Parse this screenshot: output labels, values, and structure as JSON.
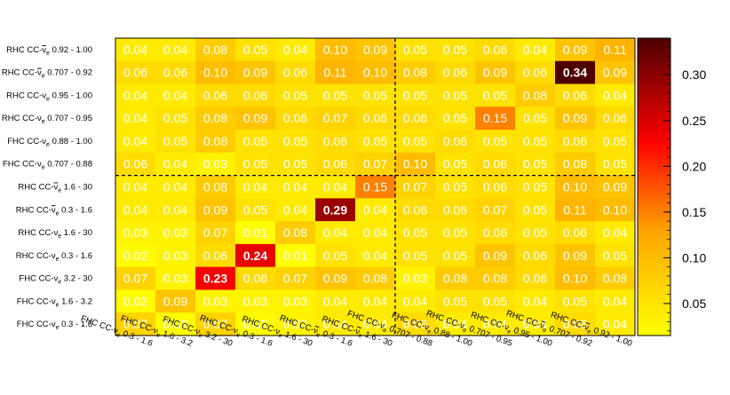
{
  "chart_data": {
    "type": "heatmap",
    "title": "",
    "xlabel": "",
    "ylabel": "",
    "x_categories": [
      "FHC CC-ν_e 0.3 - 1.6",
      "FHC CC-ν_e 1.6 - 3.2",
      "FHC CC-ν_e 3.2 - 30",
      "RHC CC-ν_e 0.3 - 1.6",
      "RHC CC-ν_e 1.6 - 30",
      "RHC CC-ν̄_e 0.3 - 1.6",
      "RHC CC-ν̄_e 1.6 - 30",
      "FHC CC-ν_e 0.707 - 0.88",
      "FHC CC-ν_e 0.88 - 1.00",
      "RHC CC-ν_e 0.707 - 0.95",
      "RHC CC-ν_e 0.95 - 1.00",
      "RHC CC-ν̄_e 0.707 - 0.92",
      "RHC CC-ν̄_e 0.92 - 1.00"
    ],
    "y_categories": [
      "RHC CC-ν̄_e 0.92 - 1.00",
      "RHC CC-ν̄_e 0.707 - 0.92",
      "RHC CC-ν_e 0.95 - 1.00",
      "RHC CC-ν_e 0.707 - 0.95",
      "FHC CC-ν_e 0.88 - 1.00",
      "FHC CC-ν_e 0.707 - 0.88",
      "RHC CC-ν̄_e 1.6 - 30",
      "RHC CC-ν̄_e 0.3 - 1.6",
      "RHC CC-ν_e 1.6 - 30",
      "RHC CC-ν_e 0.3 - 1.6",
      "FHC CC-ν_e 3.2 - 30",
      "FHC CC-ν_e 1.6 - 3.2",
      "FHC CC-ν_e 0.3 - 1.6"
    ],
    "values": [
      [
        0.04,
        0.04,
        0.08,
        0.05,
        0.04,
        0.1,
        0.09,
        0.05,
        0.05,
        0.06,
        0.04,
        0.09,
        0.11
      ],
      [
        0.06,
        0.06,
        0.1,
        0.09,
        0.06,
        0.11,
        0.1,
        0.08,
        0.06,
        0.09,
        0.06,
        0.34,
        0.09
      ],
      [
        0.04,
        0.04,
        0.06,
        0.06,
        0.05,
        0.05,
        0.05,
        0.05,
        0.05,
        0.05,
        0.08,
        0.06,
        0.04
      ],
      [
        0.04,
        0.05,
        0.08,
        0.09,
        0.06,
        0.07,
        0.06,
        0.06,
        0.05,
        0.15,
        0.05,
        0.09,
        0.06
      ],
      [
        0.04,
        0.05,
        0.08,
        0.05,
        0.05,
        0.06,
        0.05,
        0.05,
        0.06,
        0.05,
        0.05,
        0.06,
        0.05
      ],
      [
        0.06,
        0.04,
        0.03,
        0.05,
        0.05,
        0.06,
        0.07,
        0.1,
        0.05,
        0.06,
        0.05,
        0.08,
        0.05
      ],
      [
        0.04,
        0.04,
        0.08,
        0.04,
        0.04,
        0.04,
        0.15,
        0.07,
        0.05,
        0.06,
        0.05,
        0.1,
        0.09
      ],
      [
        0.04,
        0.04,
        0.09,
        0.05,
        0.04,
        0.29,
        0.04,
        0.06,
        0.06,
        0.07,
        0.05,
        0.11,
        0.1
      ],
      [
        0.03,
        0.03,
        0.07,
        0.01,
        0.08,
        0.04,
        0.04,
        0.05,
        0.05,
        0.06,
        0.05,
        0.06,
        0.04
      ],
      [
        0.02,
        0.03,
        0.06,
        0.24,
        0.01,
        0.05,
        0.04,
        0.05,
        0.05,
        0.09,
        0.06,
        0.09,
        0.05
      ],
      [
        0.07,
        0.03,
        0.23,
        0.06,
        0.07,
        0.09,
        0.08,
        0.03,
        0.08,
        0.08,
        0.06,
        0.1,
        0.08
      ],
      [
        0.02,
        0.09,
        0.03,
        0.03,
        0.03,
        0.04,
        0.04,
        0.04,
        0.05,
        0.05,
        0.04,
        0.05,
        0.04
      ],
      [
        0.07,
        0.02,
        0.07,
        0.02,
        0.03,
        0.04,
        0.04,
        0.06,
        0.04,
        0.04,
        0.04,
        0.06,
        0.04
      ]
    ],
    "colorbar": {
      "range": [
        0.015,
        0.34
      ],
      "ticks": [
        "0.05",
        "0.10",
        "0.15",
        "0.20",
        "0.25",
        "0.30"
      ],
      "tick_values": [
        0.05,
        0.1,
        0.15,
        0.2,
        0.25,
        0.3
      ],
      "colors": [
        "#ffff00",
        "#ffa500",
        "#ff0000",
        "#4d0000"
      ]
    },
    "divider_after_column": 7,
    "divider_after_row": 6,
    "grid": false,
    "legend": "colorbar-right"
  }
}
